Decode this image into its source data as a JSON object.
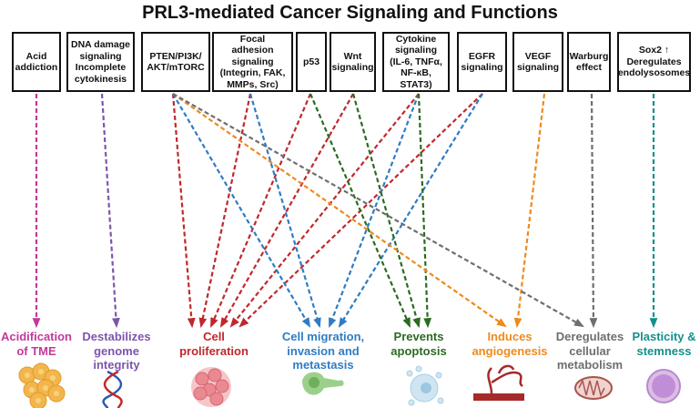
{
  "title": "PRL3-mediated Cancer Signaling and Functions",
  "sources": [
    {
      "id": "acid",
      "label": "Acid\naddiction"
    },
    {
      "id": "dna",
      "label": "DNA damage\nsignaling\nIncomplete\ncytokinesis"
    },
    {
      "id": "pten",
      "label": "PTEN/PI3K/\nAKT/mTORC"
    },
    {
      "id": "focal",
      "label": "Focal\nadhesion\nsignaling\n(Integrin, FAK,\nMMPs, Src)"
    },
    {
      "id": "p53",
      "label": "p53"
    },
    {
      "id": "wnt",
      "label": "Wnt\nsignaling"
    },
    {
      "id": "cyto",
      "label": "Cytokine\nsignaling\n(IL-6, TNFα,\nNF-κB,\nSTAT3)"
    },
    {
      "id": "egfr",
      "label": "EGFR\nsignaling"
    },
    {
      "id": "vegf",
      "label": "VEGF\nsignaling"
    },
    {
      "id": "warburg",
      "label": "Warburg\neffect"
    },
    {
      "id": "sox2",
      "label": "Sox2 ↑\nDeregulates\nendolysosomes"
    }
  ],
  "outcomes": [
    {
      "id": "acidification",
      "label": "Acidification\nof TME",
      "color": "#c2399a",
      "icon": "tumor-cells-icon"
    },
    {
      "id": "genome",
      "label": "Destabilizes\ngenome\nintegrity",
      "color": "#7d55ad",
      "icon": "dna-icon"
    },
    {
      "id": "proliferation",
      "label": "Cell\nproliferation",
      "color": "#c0282d",
      "icon": "cell-cluster-icon"
    },
    {
      "id": "migration",
      "label": "Cell migration,\ninvasion and\nmetastasis",
      "color": "#2f7cc4",
      "icon": "migrating-cell-icon"
    },
    {
      "id": "apoptosis",
      "label": "Prevents\napoptosis",
      "color": "#2c6a22",
      "icon": "apoptotic-cell-icon"
    },
    {
      "id": "angiogenesis",
      "label": "Induces\nangiogenesis",
      "color": "#ee8a1e",
      "icon": "blood-vessel-icon"
    },
    {
      "id": "metabolism",
      "label": "Deregulates\ncellular\nmetabolism",
      "color": "#6e6e6e",
      "icon": "mitochondria-icon"
    },
    {
      "id": "stemness",
      "label": "Plasticity &\nstemness",
      "color": "#13918a",
      "icon": "stem-cell-icon"
    }
  ],
  "links": [
    {
      "from": "acid",
      "to": "acidification"
    },
    {
      "from": "dna",
      "to": "genome"
    },
    {
      "from": "pten",
      "to": "proliferation"
    },
    {
      "from": "focal",
      "to": "proliferation"
    },
    {
      "from": "p53",
      "to": "proliferation"
    },
    {
      "from": "wnt",
      "to": "proliferation"
    },
    {
      "from": "cyto",
      "to": "proliferation"
    },
    {
      "from": "egfr",
      "to": "proliferation"
    },
    {
      "from": "pten",
      "to": "migration"
    },
    {
      "from": "focal",
      "to": "migration"
    },
    {
      "from": "cyto",
      "to": "migration"
    },
    {
      "from": "egfr",
      "to": "migration"
    },
    {
      "from": "p53",
      "to": "apoptosis"
    },
    {
      "from": "wnt",
      "to": "apoptosis"
    },
    {
      "from": "cyto",
      "to": "apoptosis"
    },
    {
      "from": "pten",
      "to": "angiogenesis"
    },
    {
      "from": "vegf",
      "to": "angiogenesis"
    },
    {
      "from": "pten",
      "to": "metabolism"
    },
    {
      "from": "warburg",
      "to": "metabolism"
    },
    {
      "from": "sox2",
      "to": "stemness"
    }
  ]
}
